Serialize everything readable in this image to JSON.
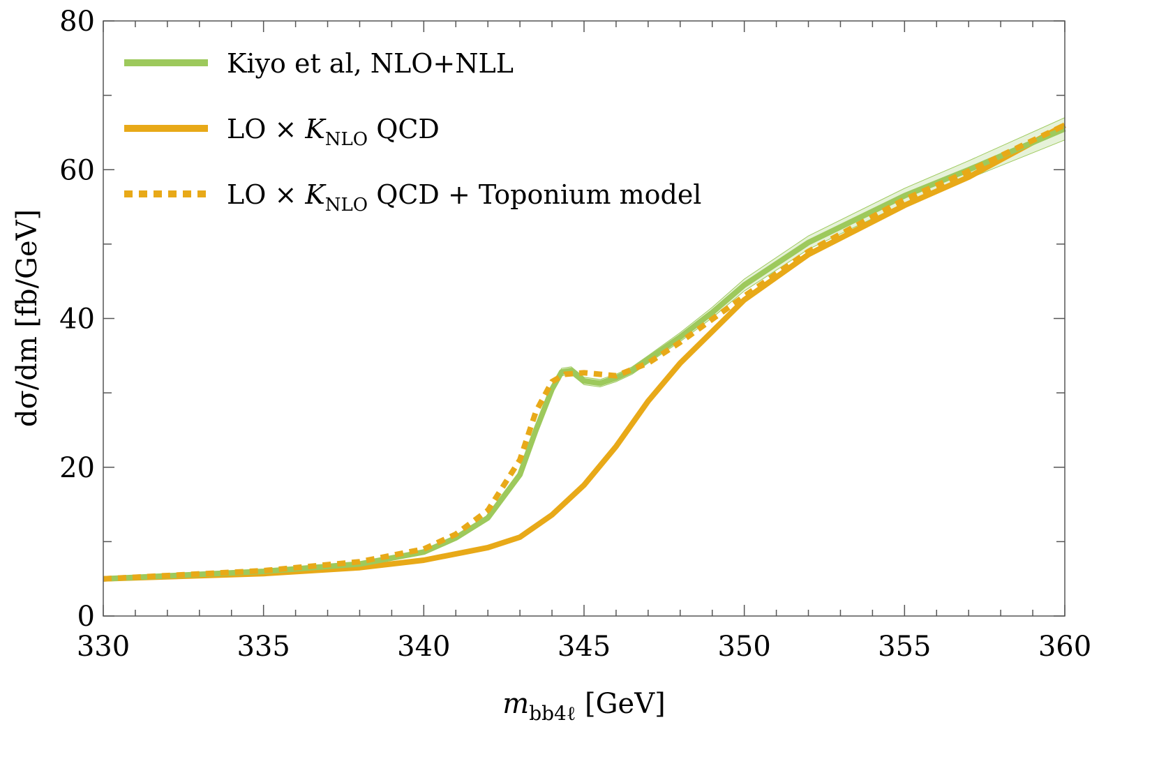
{
  "chart_data": {
    "type": "line",
    "xlabel": {
      "main": "m",
      "sub": "bb4ℓ",
      "unit": " [GeV]"
    },
    "ylabel": "dσ/dm [fb/GeV]",
    "xlim": [
      330,
      360
    ],
    "ylim": [
      0,
      80
    ],
    "x_ticks": [
      "330",
      "335",
      "340",
      "345",
      "350",
      "355",
      "360"
    ],
    "y_ticks": [
      "0",
      "20",
      "40",
      "60",
      "80"
    ],
    "grid": false,
    "legend_position": "top-left",
    "colors": {
      "green": "#9dc95c",
      "green_band": "#e6f2d9",
      "orange": "#e8a918"
    },
    "series": [
      {
        "name": "Kiyo et al, NLO+NLL",
        "legend": {
          "text": "Kiyo et al, NLO+NLL"
        },
        "style": "solid",
        "color": "#9dc95c",
        "x": [
          330,
          335,
          338,
          340,
          341,
          342,
          343,
          343.5,
          344,
          344.3,
          344.6,
          345,
          345.5,
          346,
          346.5,
          347,
          348,
          349,
          350,
          352,
          355,
          357,
          360
        ],
        "y": [
          5.0,
          6.0,
          7.0,
          8.6,
          10.5,
          13.2,
          19.0,
          25.0,
          30.5,
          32.8,
          33.0,
          31.6,
          31.3,
          32.0,
          33.0,
          34.5,
          37.5,
          40.8,
          44.5,
          50.2,
          56.5,
          60.0,
          65.5
        ],
        "band_lower": [
          4.9,
          5.9,
          6.9,
          8.4,
          10.2,
          12.9,
          18.6,
          24.5,
          30.0,
          32.3,
          32.5,
          31.1,
          30.8,
          31.5,
          32.5,
          34.0,
          36.9,
          40.1,
          43.7,
          49.3,
          55.5,
          58.8,
          64.0
        ],
        "band_upper": [
          5.1,
          6.1,
          7.1,
          8.8,
          10.8,
          13.5,
          19.4,
          25.5,
          31.0,
          33.3,
          33.5,
          32.1,
          31.8,
          32.5,
          33.5,
          35.0,
          38.1,
          41.5,
          45.3,
          51.1,
          57.5,
          61.2,
          67.0
        ]
      },
      {
        "name": "LO × K_NLO QCD",
        "legend": {
          "pre": "LO × ",
          "k": "K",
          "sub": "NLO",
          "post": " QCD"
        },
        "style": "solid",
        "color": "#e8a918",
        "x": [
          330,
          335,
          338,
          340,
          342,
          343,
          344,
          345,
          346,
          347,
          348,
          350,
          352,
          355,
          357,
          360
        ],
        "y": [
          5.0,
          5.7,
          6.5,
          7.5,
          9.2,
          10.6,
          13.6,
          17.6,
          22.8,
          28.9,
          34.0,
          42.5,
          48.6,
          55.2,
          59.0,
          66.0
        ]
      },
      {
        "name": "LO × K_NLO QCD + Toponium model",
        "legend": {
          "pre": "LO × ",
          "k": "K",
          "sub": "NLO",
          "post": " QCD + Toponium model"
        },
        "style": "dotted",
        "color": "#e8a918",
        "x": [
          330,
          335,
          338,
          340,
          341,
          342,
          343,
          343.5,
          344,
          344.4,
          345,
          346,
          347,
          348,
          350,
          352,
          355,
          357,
          360
        ],
        "y": [
          5.0,
          6.1,
          7.3,
          9.0,
          11.0,
          14.2,
          21.0,
          27.5,
          31.5,
          32.5,
          32.7,
          32.3,
          34.0,
          36.8,
          43.0,
          49.0,
          56.0,
          59.8,
          66.0
        ]
      }
    ]
  }
}
